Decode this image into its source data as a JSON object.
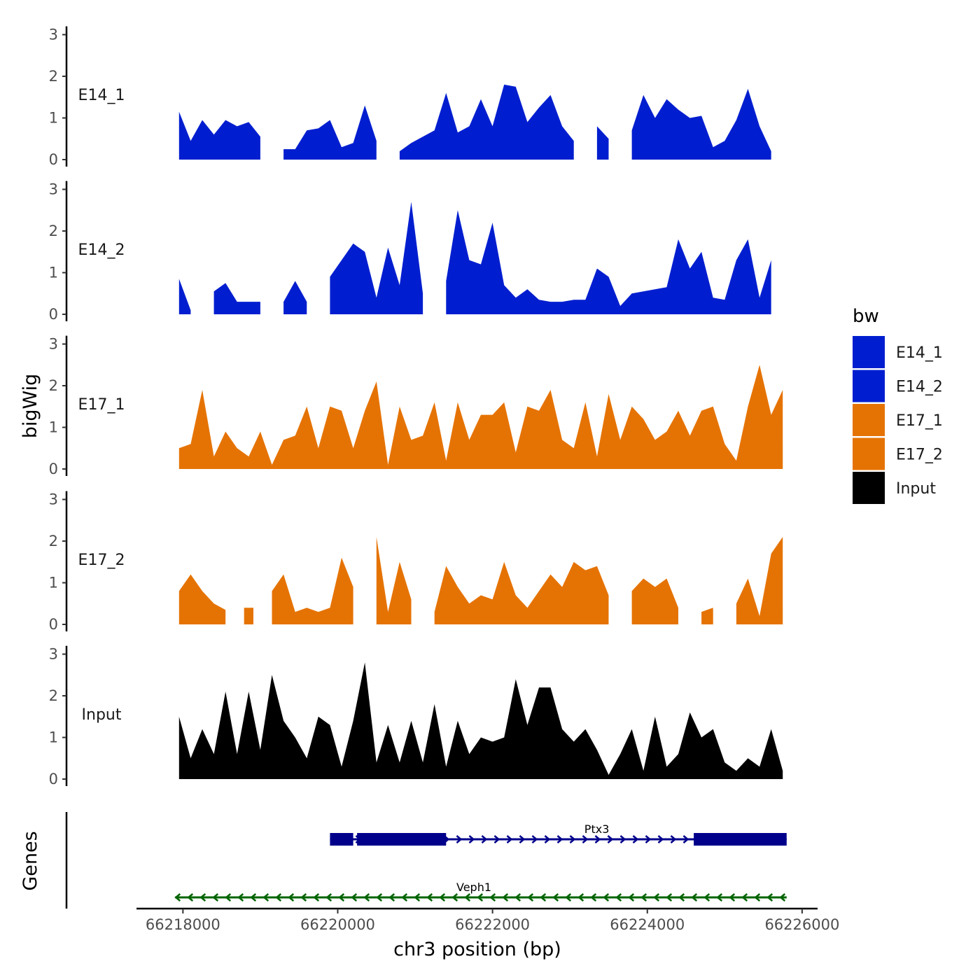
{
  "chart_data": {
    "type": "area",
    "ylabel": "bigWig",
    "xlabel": "chr3 position (bp)",
    "genes_label": "Genes",
    "xlim": [
      66217400,
      66226200
    ],
    "x_ticks": [
      66218000,
      66220000,
      66222000,
      66224000,
      66226000
    ],
    "x_tick_labels": [
      "66218000",
      "66220000",
      "66222000",
      "66224000",
      "66226000"
    ],
    "ylim": [
      0,
      3.2
    ],
    "y_ticks": [
      0,
      1,
      2,
      3
    ],
    "y_tick_labels": [
      "0",
      "1",
      "2",
      "3"
    ],
    "x": [
      66217950,
      66218100,
      66218250,
      66218400,
      66218550,
      66218700,
      66218850,
      66219000,
      66219150,
      66219300,
      66219450,
      66219600,
      66219750,
      66219900,
      66220050,
      66220200,
      66220350,
      66220500,
      66220650,
      66220800,
      66220950,
      66221100,
      66221250,
      66221400,
      66221550,
      66221700,
      66221850,
      66222000,
      66222150,
      66222300,
      66222450,
      66222600,
      66222750,
      66222900,
      66223050,
      66223200,
      66223350,
      66223500,
      66223650,
      66223800,
      66223950,
      66224100,
      66224250,
      66224400,
      66224550,
      66224700,
      66224850,
      66225000,
      66225150,
      66225300,
      66225450,
      66225600,
      66225750
    ],
    "series": [
      {
        "name": "E14_1",
        "color": "#001ECF",
        "values": [
          1.15,
          0.45,
          0.95,
          0.6,
          0.95,
          0.8,
          0.9,
          0.55,
          null,
          0.25,
          0.25,
          0.7,
          0.75,
          0.95,
          0.3,
          0.4,
          1.3,
          0.45,
          null,
          0.2,
          0.4,
          0.55,
          0.7,
          1.6,
          0.65,
          0.8,
          1.45,
          0.8,
          1.8,
          1.75,
          0.9,
          1.25,
          1.55,
          0.8,
          0.45,
          null,
          0.8,
          0.5,
          null,
          0.7,
          1.55,
          1.0,
          1.45,
          1.2,
          1.0,
          1.05,
          0.3,
          0.45,
          0.95,
          1.7,
          0.8,
          0.2,
          null
        ]
      },
      {
        "name": "E14_2",
        "color": "#001ECF",
        "values": [
          0.85,
          0.1,
          null,
          0.55,
          0.75,
          0.3,
          0.3,
          0.3,
          null,
          0.3,
          0.8,
          0.3,
          null,
          0.9,
          1.3,
          1.7,
          1.5,
          0.4,
          1.6,
          0.7,
          2.7,
          0.5,
          null,
          0.8,
          2.5,
          1.3,
          1.2,
          2.2,
          0.7,
          0.4,
          0.6,
          0.35,
          0.3,
          0.3,
          0.35,
          0.35,
          1.1,
          0.9,
          0.2,
          0.5,
          0.55,
          0.6,
          0.65,
          1.8,
          1.1,
          1.5,
          0.4,
          0.35,
          1.3,
          1.8,
          0.4,
          1.3,
          null
        ]
      },
      {
        "name": "E17_1",
        "color": "#E57304",
        "values": [
          0.5,
          0.6,
          1.9,
          0.3,
          0.9,
          0.5,
          0.3,
          0.9,
          0.1,
          0.7,
          0.8,
          1.5,
          0.5,
          1.5,
          1.4,
          0.5,
          1.4,
          2.1,
          0.1,
          1.5,
          0.7,
          0.8,
          1.6,
          0.2,
          1.6,
          0.7,
          1.3,
          1.3,
          1.6,
          0.4,
          1.5,
          1.4,
          1.9,
          0.7,
          0.5,
          1.6,
          0.3,
          1.8,
          0.7,
          1.5,
          1.2,
          0.7,
          0.9,
          1.4,
          0.8,
          1.4,
          1.5,
          0.6,
          0.2,
          1.5,
          2.5,
          1.3,
          1.9
        ]
      },
      {
        "name": "E17_2",
        "color": "#E57304",
        "values": [
          0.8,
          1.2,
          0.8,
          0.5,
          0.35,
          null,
          0.4,
          null,
          0.8,
          1.2,
          0.3,
          0.4,
          0.3,
          0.4,
          1.6,
          0.9,
          null,
          2.1,
          0.3,
          1.5,
          0.6,
          null,
          0.3,
          1.4,
          0.9,
          0.5,
          0.7,
          0.6,
          1.5,
          0.7,
          0.4,
          0.8,
          1.2,
          0.9,
          1.5,
          1.3,
          1.4,
          0.7,
          null,
          0.8,
          1.1,
          0.9,
          1.1,
          0.4,
          null,
          0.3,
          0.4,
          null,
          0.5,
          1.1,
          0.2,
          1.7,
          2.1
        ]
      },
      {
        "name": "Input",
        "color": "#000000",
        "values": [
          1.5,
          0.5,
          1.2,
          0.6,
          2.1,
          0.6,
          2.1,
          0.7,
          2.5,
          1.4,
          1.0,
          0.5,
          1.5,
          1.3,
          0.3,
          1.4,
          2.8,
          0.4,
          1.3,
          0.4,
          1.4,
          0.4,
          1.8,
          0.3,
          1.4,
          0.6,
          1.0,
          0.9,
          1.0,
          2.4,
          1.3,
          2.2,
          2.2,
          1.2,
          0.9,
          1.2,
          0.7,
          0.1,
          0.6,
          1.2,
          0.2,
          1.5,
          0.3,
          0.6,
          1.6,
          1.0,
          1.2,
          0.4,
          0.2,
          0.5,
          0.3,
          1.2,
          0.2
        ]
      }
    ],
    "legend": {
      "title": "bw",
      "position": "right",
      "entries": [
        {
          "label": "E14_1",
          "color": "#001ECF"
        },
        {
          "label": "E14_2",
          "color": "#001ECF"
        },
        {
          "label": "E17_1",
          "color": "#E57304"
        },
        {
          "label": "E17_2",
          "color": "#E57304"
        },
        {
          "label": "Input",
          "color": "#000000"
        }
      ]
    },
    "genes": [
      {
        "name": "Ptx3",
        "strand": "+",
        "color": "#00008B",
        "start": 66219900,
        "end": 66225800,
        "exons": [
          [
            66219900,
            66220200
          ],
          [
            66220250,
            66221400
          ],
          [
            66224600,
            66225800
          ]
        ]
      },
      {
        "name": "Veph1",
        "strand": "-",
        "color": "#006400",
        "start": 66217900,
        "end": 66225800,
        "exons": []
      }
    ]
  }
}
